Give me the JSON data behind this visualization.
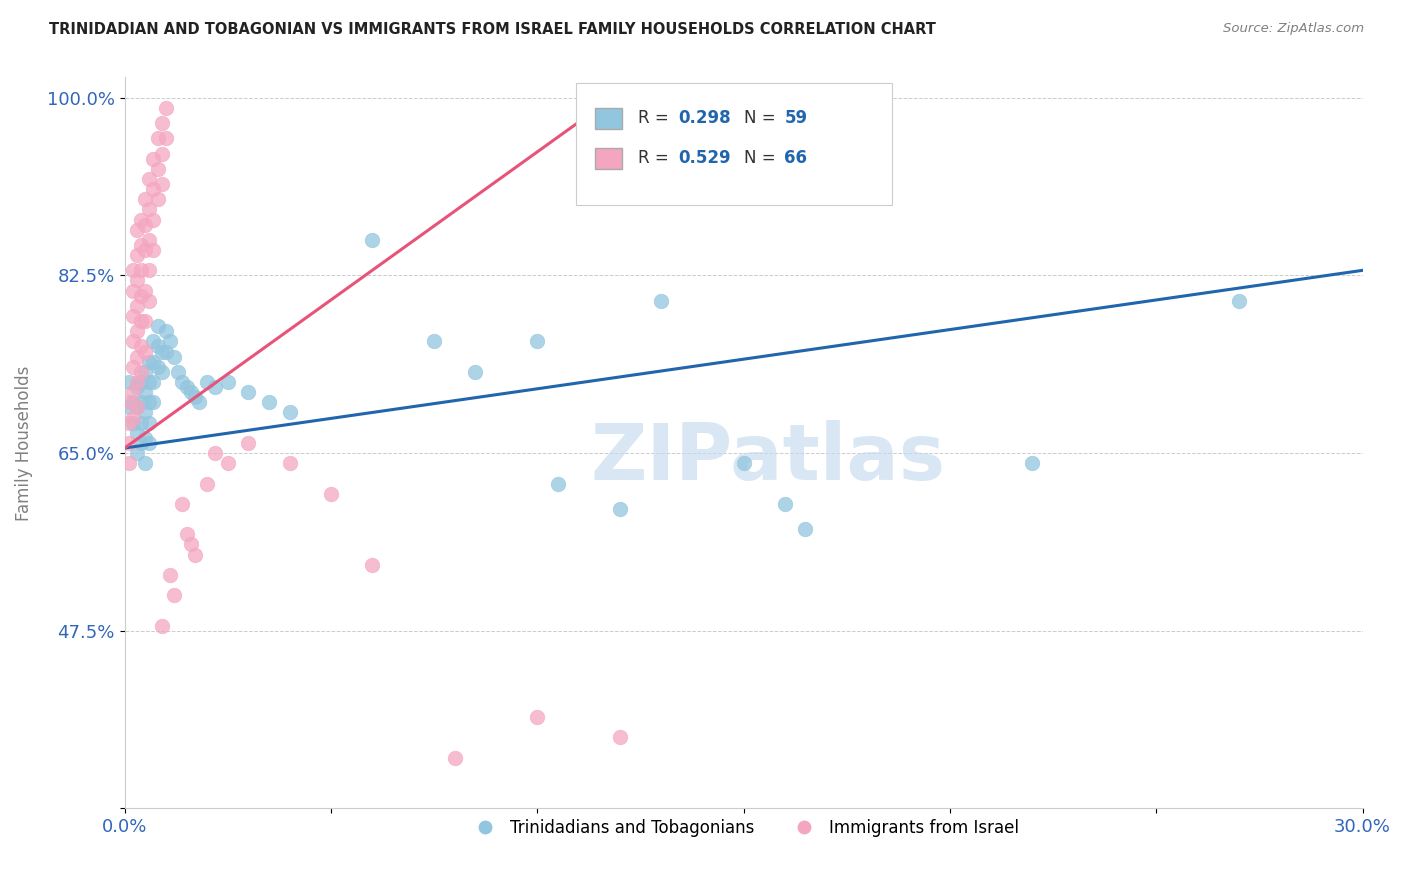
{
  "title": "TRINIDADIAN AND TOBAGONIAN VS IMMIGRANTS FROM ISRAEL FAMILY HOUSEHOLDS CORRELATION CHART",
  "source": "Source: ZipAtlas.com",
  "ylabel": "Family Households",
  "xlim": [
    0.0,
    0.3
  ],
  "ylim": [
    0.3,
    1.02
  ],
  "xticks": [
    0.0,
    0.05,
    0.1,
    0.15,
    0.2,
    0.25,
    0.3
  ],
  "xticklabels": [
    "0.0%",
    "",
    "",
    "",
    "",
    "",
    "30.0%"
  ],
  "yticks": [
    0.3,
    0.475,
    0.65,
    0.825,
    1.0
  ],
  "yticklabels": [
    "",
    "47.5%",
    "65.0%",
    "82.5%",
    "100.0%"
  ],
  "blue_color": "#92c5de",
  "pink_color": "#f4a6c0",
  "blue_line_color": "#2166ac",
  "pink_line_color": "#e8537a",
  "watermark": "ZIPatlas",
  "watermark_color": "#c6dbef",
  "blue_label": "Trinidadians and Tobagonians",
  "pink_label": "Immigrants from Israel",
  "blue_scatter": [
    [
      0.001,
      0.695
    ],
    [
      0.001,
      0.72
    ],
    [
      0.002,
      0.68
    ],
    [
      0.002,
      0.7
    ],
    [
      0.003,
      0.715
    ],
    [
      0.003,
      0.695
    ],
    [
      0.003,
      0.67
    ],
    [
      0.003,
      0.65
    ],
    [
      0.004,
      0.72
    ],
    [
      0.004,
      0.7
    ],
    [
      0.004,
      0.68
    ],
    [
      0.004,
      0.66
    ],
    [
      0.005,
      0.73
    ],
    [
      0.005,
      0.71
    ],
    [
      0.005,
      0.69
    ],
    [
      0.005,
      0.665
    ],
    [
      0.005,
      0.64
    ],
    [
      0.006,
      0.74
    ],
    [
      0.006,
      0.72
    ],
    [
      0.006,
      0.7
    ],
    [
      0.006,
      0.68
    ],
    [
      0.006,
      0.66
    ],
    [
      0.007,
      0.76
    ],
    [
      0.007,
      0.74
    ],
    [
      0.007,
      0.72
    ],
    [
      0.007,
      0.7
    ],
    [
      0.008,
      0.775
    ],
    [
      0.008,
      0.755
    ],
    [
      0.008,
      0.735
    ],
    [
      0.009,
      0.75
    ],
    [
      0.009,
      0.73
    ],
    [
      0.01,
      0.77
    ],
    [
      0.01,
      0.75
    ],
    [
      0.011,
      0.76
    ],
    [
      0.012,
      0.745
    ],
    [
      0.013,
      0.73
    ],
    [
      0.014,
      0.72
    ],
    [
      0.015,
      0.715
    ],
    [
      0.016,
      0.71
    ],
    [
      0.017,
      0.705
    ],
    [
      0.018,
      0.7
    ],
    [
      0.02,
      0.72
    ],
    [
      0.022,
      0.715
    ],
    [
      0.025,
      0.72
    ],
    [
      0.03,
      0.71
    ],
    [
      0.035,
      0.7
    ],
    [
      0.04,
      0.69
    ],
    [
      0.06,
      0.86
    ],
    [
      0.075,
      0.76
    ],
    [
      0.085,
      0.73
    ],
    [
      0.1,
      0.76
    ],
    [
      0.105,
      0.62
    ],
    [
      0.12,
      0.595
    ],
    [
      0.13,
      0.8
    ],
    [
      0.15,
      0.64
    ],
    [
      0.16,
      0.6
    ],
    [
      0.165,
      0.575
    ],
    [
      0.22,
      0.64
    ],
    [
      0.27,
      0.8
    ]
  ],
  "pink_scatter": [
    [
      0.001,
      0.7
    ],
    [
      0.001,
      0.68
    ],
    [
      0.001,
      0.66
    ],
    [
      0.001,
      0.64
    ],
    [
      0.002,
      0.83
    ],
    [
      0.002,
      0.81
    ],
    [
      0.002,
      0.785
    ],
    [
      0.002,
      0.76
    ],
    [
      0.002,
      0.735
    ],
    [
      0.002,
      0.71
    ],
    [
      0.002,
      0.685
    ],
    [
      0.003,
      0.87
    ],
    [
      0.003,
      0.845
    ],
    [
      0.003,
      0.82
    ],
    [
      0.003,
      0.795
    ],
    [
      0.003,
      0.77
    ],
    [
      0.003,
      0.745
    ],
    [
      0.003,
      0.72
    ],
    [
      0.003,
      0.695
    ],
    [
      0.004,
      0.88
    ],
    [
      0.004,
      0.855
    ],
    [
      0.004,
      0.83
    ],
    [
      0.004,
      0.805
    ],
    [
      0.004,
      0.78
    ],
    [
      0.004,
      0.755
    ],
    [
      0.004,
      0.73
    ],
    [
      0.005,
      0.9
    ],
    [
      0.005,
      0.875
    ],
    [
      0.005,
      0.85
    ],
    [
      0.005,
      0.81
    ],
    [
      0.005,
      0.78
    ],
    [
      0.005,
      0.75
    ],
    [
      0.006,
      0.92
    ],
    [
      0.006,
      0.89
    ],
    [
      0.006,
      0.86
    ],
    [
      0.006,
      0.83
    ],
    [
      0.006,
      0.8
    ],
    [
      0.007,
      0.94
    ],
    [
      0.007,
      0.91
    ],
    [
      0.007,
      0.88
    ],
    [
      0.007,
      0.85
    ],
    [
      0.008,
      0.96
    ],
    [
      0.008,
      0.93
    ],
    [
      0.008,
      0.9
    ],
    [
      0.009,
      0.975
    ],
    [
      0.009,
      0.945
    ],
    [
      0.009,
      0.915
    ],
    [
      0.009,
      0.48
    ],
    [
      0.01,
      0.99
    ],
    [
      0.01,
      0.96
    ],
    [
      0.011,
      0.53
    ],
    [
      0.012,
      0.51
    ],
    [
      0.014,
      0.6
    ],
    [
      0.015,
      0.57
    ],
    [
      0.016,
      0.56
    ],
    [
      0.017,
      0.55
    ],
    [
      0.02,
      0.62
    ],
    [
      0.022,
      0.65
    ],
    [
      0.025,
      0.64
    ],
    [
      0.03,
      0.66
    ],
    [
      0.04,
      0.64
    ],
    [
      0.05,
      0.61
    ],
    [
      0.06,
      0.54
    ],
    [
      0.08,
      0.35
    ],
    [
      0.1,
      0.39
    ],
    [
      0.12,
      0.37
    ]
  ]
}
